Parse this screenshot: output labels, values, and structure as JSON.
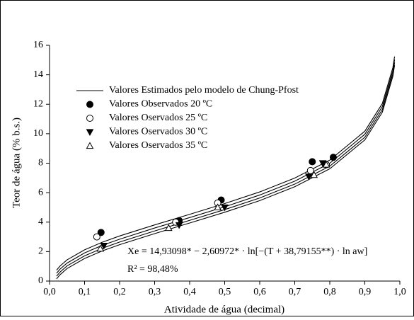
{
  "chart_data": {
    "type": "scatter",
    "xlabel": "Atividade de água (decimal)",
    "ylabel": "Teor de água (% b.s.)",
    "xlim": [
      0,
      1
    ],
    "ylim": [
      0,
      16
    ],
    "xticks": [
      {
        "value": 0,
        "label": "0,0"
      },
      {
        "value": 0.1,
        "label": "0,1"
      },
      {
        "value": 0.2,
        "label": "0,2"
      },
      {
        "value": 0.3,
        "label": "0,3"
      },
      {
        "value": 0.4,
        "label": "0,4"
      },
      {
        "value": 0.5,
        "label": "0,5"
      },
      {
        "value": 0.6,
        "label": "0,6"
      },
      {
        "value": 0.7,
        "label": "0,7"
      },
      {
        "value": 0.8,
        "label": "0,8"
      },
      {
        "value": 0.9,
        "label": "0,9"
      },
      {
        "value": 1,
        "label": "1,0"
      }
    ],
    "yticks": [
      0,
      2,
      4,
      6,
      8,
      10,
      12,
      14,
      16
    ],
    "fit": {
      "name": "Valores Estimados pelo modelo de Chung-Pfost",
      "color": "#000000",
      "x": [
        0.02,
        0.03,
        0.05,
        0.1,
        0.15,
        0.2,
        0.3,
        0.4,
        0.5,
        0.6,
        0.7,
        0.8,
        0.9,
        0.95,
        0.98,
        0.985
      ],
      "curves": [
        [
          0.74,
          1.02,
          1.44,
          2.12,
          2.63,
          3.06,
          3.81,
          4.53,
          5.26,
          6.05,
          6.99,
          8.21,
          10.17,
          12.05,
          14.48,
          15.24
        ],
        [
          0.53,
          0.81,
          1.22,
          1.91,
          2.42,
          2.84,
          3.6,
          4.31,
          5.04,
          5.84,
          6.78,
          8.0,
          9.96,
          11.84,
          14.27,
          15.03
        ],
        [
          0.33,
          0.61,
          1.03,
          1.71,
          2.22,
          2.65,
          3.4,
          4.12,
          4.85,
          5.64,
          6.58,
          7.8,
          9.76,
          11.64,
          14.07,
          14.83
        ],
        [
          0.15,
          0.43,
          0.85,
          1.53,
          2.04,
          2.47,
          3.22,
          3.94,
          4.67,
          5.46,
          6.4,
          7.62,
          9.58,
          11.46,
          13.89,
          14.65
        ]
      ]
    },
    "series": [
      {
        "name": "Valores Observados 20 ºC",
        "color": "#000000",
        "marker": "circle-filled",
        "x": [
          0.147,
          0.37,
          0.49,
          0.75,
          0.81
        ],
        "values": [
          3.3,
          4.1,
          5.5,
          8.1,
          8.4
        ]
      },
      {
        "name": "Valores Oservados 25 ºC",
        "color": "#000000",
        "marker": "circle-open",
        "x": [
          0.135,
          0.36,
          0.48,
          0.745,
          0.79
        ],
        "values": [
          3.0,
          4.0,
          5.3,
          7.5,
          7.9
        ]
      },
      {
        "name": "Valores Oservados 30 ºC",
        "color": "#000000",
        "marker": "triangle-down-filled",
        "x": [
          0.155,
          0.37,
          0.5,
          0.74,
          0.78
        ],
        "values": [
          2.4,
          3.8,
          5.0,
          7.1,
          8.0
        ]
      },
      {
        "name": "Valores Oservados 35 ºC",
        "color": "#000000",
        "marker": "triangle-up-open",
        "x": [
          0.145,
          0.34,
          0.48,
          0.755,
          0.79
        ],
        "values": [
          2.2,
          3.6,
          5.0,
          7.2,
          7.9
        ]
      }
    ],
    "annotations": [
      "Xe = 14,93098* − 2,60972* · ln[−(T + 38,79155**) · ln aw]",
      "R² = 98,48%"
    ]
  }
}
